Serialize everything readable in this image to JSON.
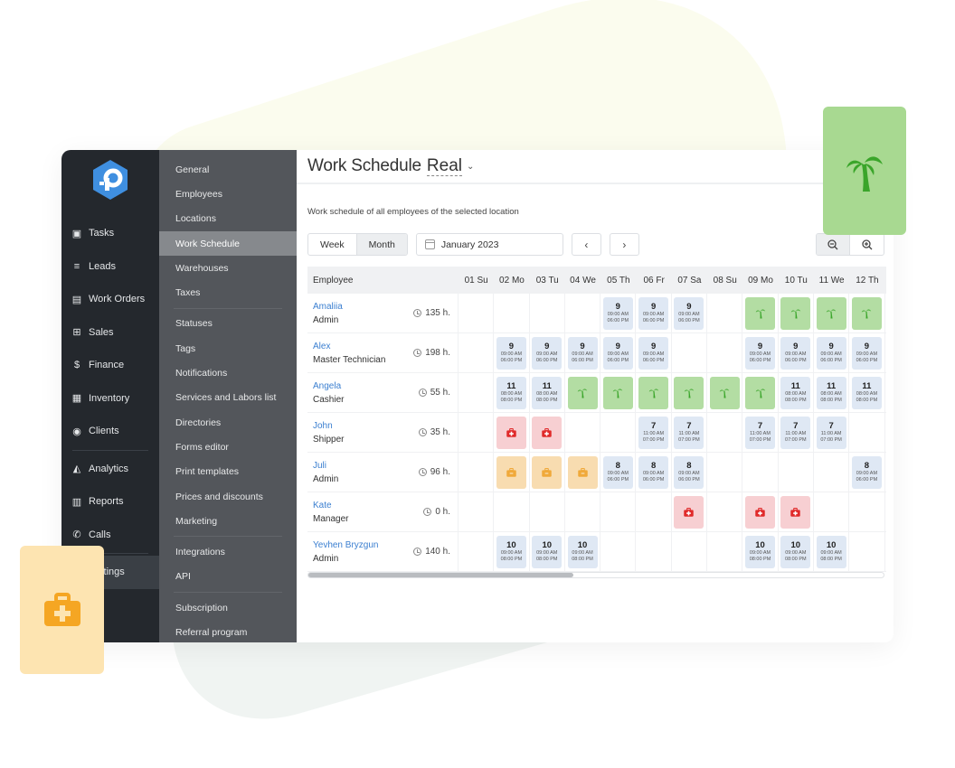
{
  "colors": {
    "accent": "#3b7fd0",
    "work": "#dfe8f4",
    "vacation": "#b3dda3",
    "sick": "#f7cfd2",
    "leave": "#f8dcb0",
    "nav_bg": "#24282d",
    "subnav_bg": "#53565b"
  },
  "nav": {
    "items": [
      {
        "label": "Tasks",
        "icon": "clipboard-icon"
      },
      {
        "label": "Leads",
        "icon": "filter-icon"
      },
      {
        "label": "Work Orders",
        "icon": "work-orders-icon"
      },
      {
        "label": "Sales",
        "icon": "cart-icon"
      },
      {
        "label": "Finance",
        "icon": "dollar-icon"
      },
      {
        "label": "Inventory",
        "icon": "boxes-icon"
      },
      {
        "label": "Clients",
        "icon": "users-icon"
      },
      {
        "label": "Analytics",
        "icon": "chart-icon"
      },
      {
        "label": "Reports",
        "icon": "reports-icon"
      },
      {
        "label": "Calls",
        "icon": "phone-icon"
      },
      {
        "label": "Settings",
        "icon": "gear-icon"
      }
    ]
  },
  "subnav": {
    "groups": [
      [
        "General",
        "Employees",
        "Locations",
        "Work Schedule",
        "Warehouses",
        "Taxes"
      ],
      [
        "Statuses",
        "Tags",
        "Notifications",
        "Services and Labors list",
        "Directories",
        "Forms editor",
        "Print templates",
        "Prices and discounts",
        "Marketing"
      ],
      [
        "Integrations",
        "API"
      ],
      [
        "Subscription",
        "Referral program"
      ]
    ],
    "active": "Work Schedule"
  },
  "header": {
    "title": "Work Schedule",
    "selector": "Real"
  },
  "description": "Work schedule of all employees of the selected location",
  "toolbar": {
    "week": "Week",
    "month": "Month",
    "date": "January 2023",
    "prev": "‹",
    "next": "›"
  },
  "table": {
    "employee_header": "Employee",
    "days": [
      "01 Su",
      "02 Mo",
      "03 Tu",
      "04 We",
      "05 Th",
      "06 Fr",
      "07 Sa",
      "08 Su",
      "09 Mo",
      "10 Tu",
      "11 We",
      "12 Th"
    ],
    "rows": [
      {
        "name": "Amaliia",
        "role": "Admin",
        "hours": "135 h.",
        "cells": [
          null,
          null,
          null,
          null,
          {
            "t": "work",
            "h": "9",
            "s": "09:00 AM",
            "e": "06:00 PM"
          },
          {
            "t": "work",
            "h": "9",
            "s": "09:00 AM",
            "e": "06:00 PM"
          },
          {
            "t": "work",
            "h": "9",
            "s": "09:00 AM",
            "e": "06:00 PM"
          },
          null,
          {
            "t": "vac"
          },
          {
            "t": "vac"
          },
          {
            "t": "vac"
          },
          {
            "t": "vac"
          }
        ]
      },
      {
        "name": "Alex",
        "role": "Master Technician",
        "hours": "198 h.",
        "cells": [
          null,
          {
            "t": "work",
            "h": "9",
            "s": "09:00 AM",
            "e": "06:00 PM"
          },
          {
            "t": "work",
            "h": "9",
            "s": "09:00 AM",
            "e": "06:00 PM"
          },
          {
            "t": "work",
            "h": "9",
            "s": "09:00 AM",
            "e": "06:00 PM"
          },
          {
            "t": "work",
            "h": "9",
            "s": "09:00 AM",
            "e": "06:00 PM"
          },
          {
            "t": "work",
            "h": "9",
            "s": "09:00 AM",
            "e": "06:00 PM"
          },
          null,
          null,
          {
            "t": "work",
            "h": "9",
            "s": "09:00 AM",
            "e": "06:00 PM"
          },
          {
            "t": "work",
            "h": "9",
            "s": "09:00 AM",
            "e": "06:00 PM"
          },
          {
            "t": "work",
            "h": "9",
            "s": "09:00 AM",
            "e": "06:00 PM"
          },
          {
            "t": "work",
            "h": "9",
            "s": "09:00 AM",
            "e": "06:00 PM"
          }
        ]
      },
      {
        "name": "Angela",
        "role": "Cashier",
        "hours": "55 h.",
        "cells": [
          null,
          {
            "t": "work",
            "h": "11",
            "s": "08:00 AM",
            "e": "08:00 PM"
          },
          {
            "t": "work",
            "h": "11",
            "s": "08:00 AM",
            "e": "08:00 PM"
          },
          {
            "t": "vac"
          },
          {
            "t": "vac"
          },
          {
            "t": "vac"
          },
          {
            "t": "vac"
          },
          {
            "t": "vac"
          },
          {
            "t": "vac"
          },
          {
            "t": "work",
            "h": "11",
            "s": "08:00 AM",
            "e": "08:00 PM"
          },
          {
            "t": "work",
            "h": "11",
            "s": "08:00 AM",
            "e": "08:00 PM"
          },
          {
            "t": "work",
            "h": "11",
            "s": "08:00 AM",
            "e": "08:00 PM"
          }
        ]
      },
      {
        "name": "John",
        "role": "Shipper",
        "hours": "35 h.",
        "cells": [
          null,
          {
            "t": "sick"
          },
          {
            "t": "sick"
          },
          null,
          null,
          {
            "t": "work",
            "h": "7",
            "s": "11:00 AM",
            "e": "07:00 PM"
          },
          {
            "t": "work",
            "h": "7",
            "s": "11:00 AM",
            "e": "07:00 PM"
          },
          null,
          {
            "t": "work",
            "h": "7",
            "s": "11:00 AM",
            "e": "07:00 PM"
          },
          {
            "t": "work",
            "h": "7",
            "s": "11:00 AM",
            "e": "07:00 PM"
          },
          {
            "t": "work",
            "h": "7",
            "s": "11:00 AM",
            "e": "07:00 PM"
          },
          null
        ]
      },
      {
        "name": "Juli",
        "role": "Admin",
        "hours": "96 h.",
        "cells": [
          null,
          {
            "t": "leave"
          },
          {
            "t": "leave"
          },
          {
            "t": "leave"
          },
          {
            "t": "work",
            "h": "8",
            "s": "09:00 AM",
            "e": "06:00 PM"
          },
          {
            "t": "work",
            "h": "8",
            "s": "09:00 AM",
            "e": "06:00 PM"
          },
          {
            "t": "work",
            "h": "8",
            "s": "09:00 AM",
            "e": "06:00 PM"
          },
          null,
          null,
          null,
          null,
          {
            "t": "work",
            "h": "8",
            "s": "09:00 AM",
            "e": "06:00 PM"
          }
        ]
      },
      {
        "name": "Kate",
        "role": "Manager",
        "hours": "0 h.",
        "cells": [
          null,
          null,
          null,
          null,
          null,
          null,
          {
            "t": "sick"
          },
          null,
          {
            "t": "sick"
          },
          {
            "t": "sick"
          },
          null,
          null
        ]
      },
      {
        "name": "Yevhen Bryzgun",
        "role": "Admin",
        "hours": "140 h.",
        "cells": [
          null,
          {
            "t": "work",
            "h": "10",
            "s": "09:00 AM",
            "e": "08:00 PM"
          },
          {
            "t": "work",
            "h": "10",
            "s": "09:00 AM",
            "e": "08:00 PM"
          },
          {
            "t": "work",
            "h": "10",
            "s": "09:00 AM",
            "e": "08:00 PM"
          },
          null,
          null,
          null,
          null,
          {
            "t": "work",
            "h": "10",
            "s": "09:00 AM",
            "e": "08:00 PM"
          },
          {
            "t": "work",
            "h": "10",
            "s": "09:00 AM",
            "e": "08:00 PM"
          },
          {
            "t": "work",
            "h": "10",
            "s": "09:00 AM",
            "e": "08:00 PM"
          },
          null
        ]
      }
    ]
  },
  "legend_cards": [
    {
      "icon": "palm-tree-icon",
      "meaning": "vacation"
    },
    {
      "icon": "medkit-icon",
      "meaning": "sick"
    }
  ]
}
